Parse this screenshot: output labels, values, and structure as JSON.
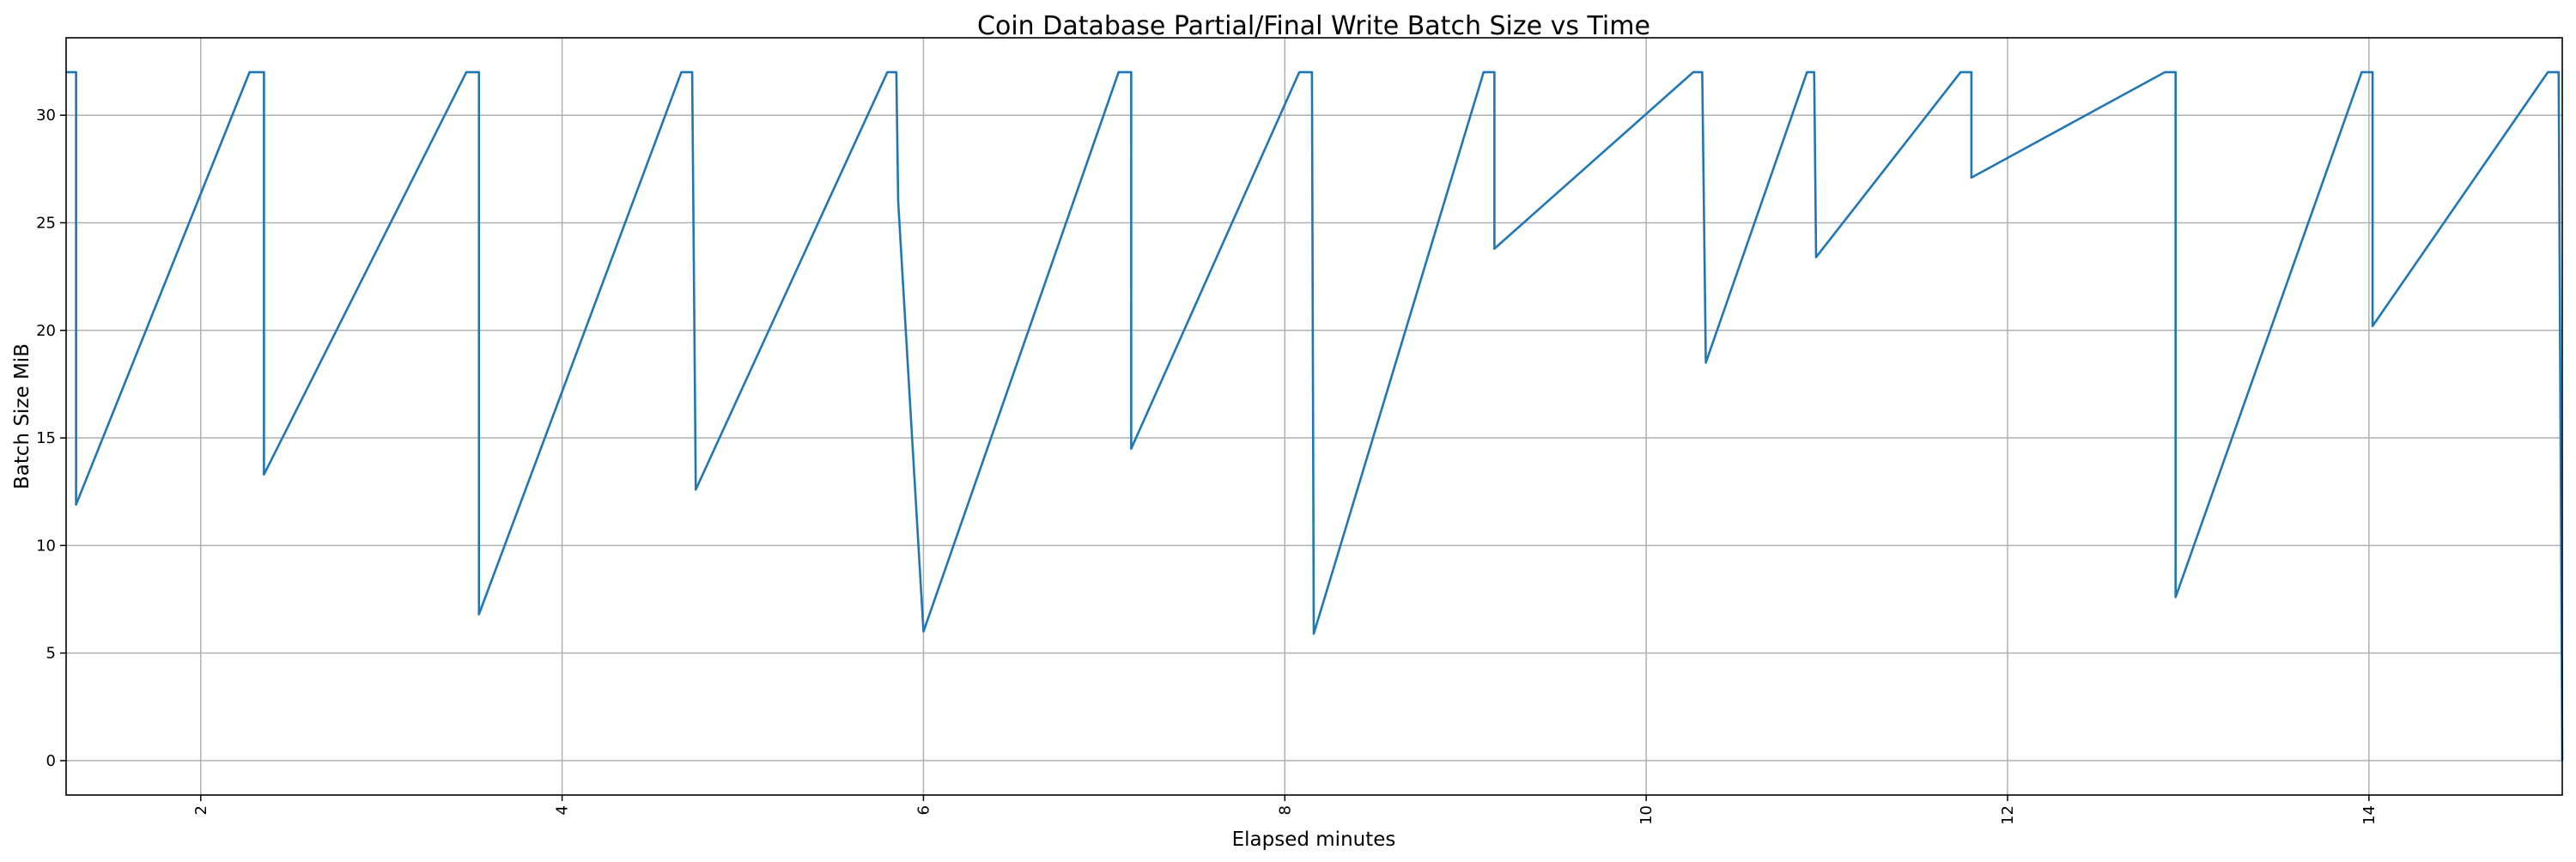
{
  "chart_data": {
    "type": "line",
    "title": "Coin Database Partial/Final Write Batch Size vs Time",
    "xlabel": "Elapsed minutes",
    "ylabel": "Batch Size MiB",
    "xlim": [
      1.255,
      15.07
    ],
    "ylim": [
      -1.6,
      33.6
    ],
    "xticks": [
      2,
      4,
      6,
      8,
      10,
      12,
      14
    ],
    "yticks": [
      0,
      5,
      10,
      15,
      20,
      25,
      30
    ],
    "grid": true,
    "line_color": "#1f77b4",
    "series": [
      {
        "x": [
          1.255,
          1.31,
          1.31,
          2.27,
          2.35,
          2.35,
          3.47,
          3.54,
          3.54,
          4.66,
          4.72,
          4.74,
          5.8,
          5.85,
          5.86,
          6.0,
          7.08,
          7.15,
          7.15,
          8.08,
          8.15,
          8.16,
          9.1,
          9.16,
          9.16,
          10.26,
          10.31,
          10.33,
          10.89,
          10.93,
          10.94,
          11.74,
          11.8,
          11.8,
          12.87,
          12.93,
          12.93,
          13.96,
          14.02,
          14.02,
          14.99,
          15.05,
          15.07
        ],
        "y": [
          32,
          32,
          11.9,
          32,
          32,
          13.3,
          32,
          32,
          6.8,
          32,
          32,
          12.6,
          32,
          32,
          26,
          6.0,
          32,
          32,
          14.5,
          32,
          32,
          5.9,
          32,
          32,
          23.8,
          32,
          32,
          18.5,
          32,
          32,
          23.4,
          32,
          32,
          27.1,
          32,
          32,
          7.6,
          32,
          32,
          20.2,
          32,
          32,
          0
        ]
      }
    ]
  }
}
